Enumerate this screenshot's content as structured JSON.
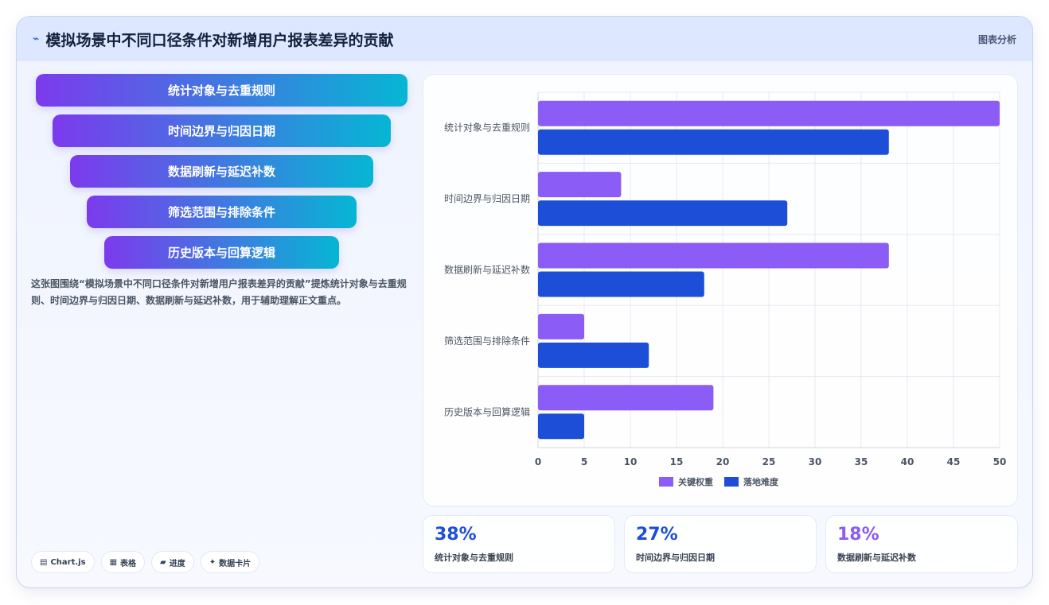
{
  "header": {
    "icon": "trend-line-icon",
    "title": "模拟场景中不同口径条件对新增用户报表差异的贡献",
    "tag": "图表分析"
  },
  "funnel": [
    "统计对象与去重规则",
    "时间边界与归因日期",
    "数据刷新与延迟补数",
    "筛选范围与排除条件",
    "历史版本与回算逻辑"
  ],
  "description": "这张图围绕“模拟场景中不同口径条件对新增用户报表差异的贡献”提炼统计对象与去重规则、时间边界与归因日期、数据刷新与延迟补数，用于辅助理解正文重点。",
  "pills": [
    {
      "icon": "▤",
      "label": "Chart.js"
    },
    {
      "icon": "▦",
      "label": "表格"
    },
    {
      "icon": "▰",
      "label": "进度"
    },
    {
      "icon": "✦",
      "label": "数据卡片"
    }
  ],
  "stats": [
    {
      "value": "38%",
      "label": "统计对象与去重规则",
      "color": "#1d4ed8"
    },
    {
      "value": "27%",
      "label": "时间边界与归因日期",
      "color": "#1d4ed8"
    },
    {
      "value": "18%",
      "label": "数据刷新与延迟补数",
      "color": "#8b5cf6"
    }
  ],
  "chart_data": {
    "type": "bar",
    "orientation": "horizontal",
    "categories": [
      "统计对象与去重规则",
      "时间边界与归因日期",
      "数据刷新与延迟补数",
      "筛选范围与排除条件",
      "历史版本与回算逻辑"
    ],
    "series": [
      {
        "name": "关键权重",
        "values": [
          50,
          9,
          38,
          5,
          19
        ],
        "color": "#8b5cf6"
      },
      {
        "name": "落地难度",
        "values": [
          38,
          27,
          18,
          12,
          5
        ],
        "color": "#1d4ed8"
      }
    ],
    "xlim": [
      0,
      50
    ],
    "xticks": [
      0,
      5,
      10,
      15,
      20,
      25,
      30,
      35,
      40,
      45,
      50
    ],
    "grid": true,
    "legend": "bottom"
  }
}
